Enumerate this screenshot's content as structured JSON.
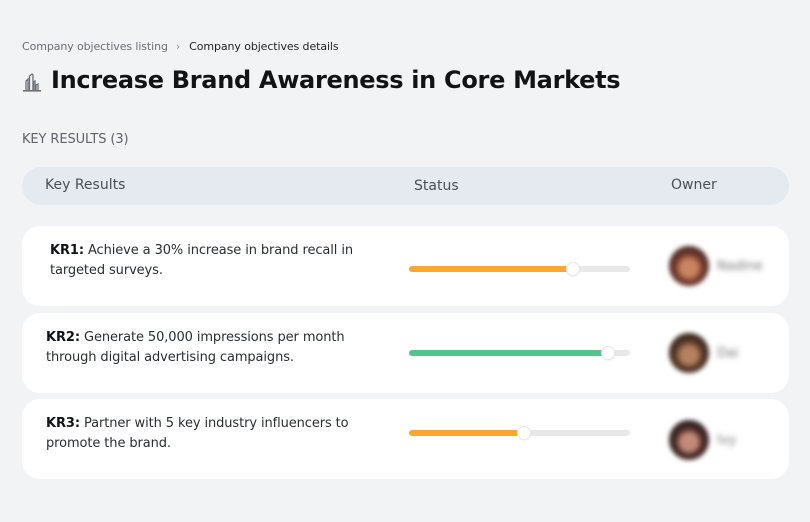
{
  "breadcrumb": {
    "parent": "Company objectives listing",
    "separator": "›",
    "current": "Company objectives details"
  },
  "objective": {
    "icon": "buildings-icon",
    "title": "Increase Brand Awareness in Core Markets"
  },
  "key_results_section": {
    "label": "KEY RESULTS (3)",
    "count": 3
  },
  "table": {
    "columns": [
      "Key Results",
      "Status",
      "Owner"
    ]
  },
  "key_results": [
    {
      "code": "KR1:",
      "description": "Achieve a 30% increase in brand recall in targeted surveys.",
      "progress_percent": 74,
      "progress_color": "#FBA730",
      "owner_name": "Nadine",
      "avatar_colors": [
        "#3a2420",
        "#c98560",
        "#7a3c2e"
      ]
    },
    {
      "code": "KR2:",
      "description": "Generate 50,000 impressions per month through digital advertising campaigns.",
      "progress_percent": 90,
      "progress_color": "#52C48C",
      "owner_name": "Dai",
      "avatar_colors": [
        "#2e2018",
        "#b58060",
        "#5a3a28"
      ]
    },
    {
      "code": "KR3:",
      "description": "Partner with 5 key industry influencers to promote the brand.",
      "progress_percent": 52,
      "progress_color": "#FBA730",
      "owner_name": "Ivy",
      "avatar_colors": [
        "#2a1e1e",
        "#c48a78",
        "#4a2a26"
      ]
    }
  ],
  "colors": {
    "background": "#F2F3F5",
    "header_bg": "#E5E9F0",
    "card_bg": "#FFFFFF",
    "track": "#E8E8E8"
  }
}
